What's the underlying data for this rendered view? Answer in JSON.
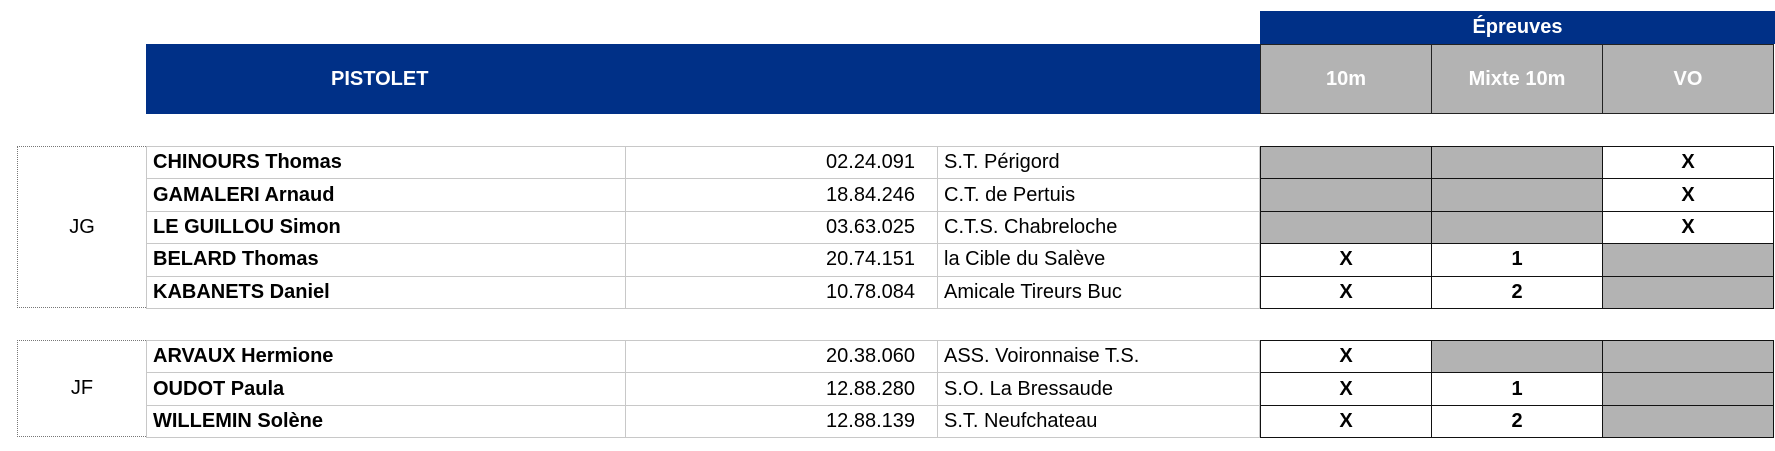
{
  "header": {
    "title": "PISTOLET",
    "events_label": "Épreuves",
    "events": [
      "10m",
      "Mixte 10m",
      "VO"
    ]
  },
  "groups": [
    {
      "label": "JG",
      "rows": [
        {
          "name": "CHINOURS Thomas",
          "license": "02.24.091",
          "club": "S.T. Périgord",
          "events": [
            null,
            null,
            "X"
          ]
        },
        {
          "name": "GAMALERI Arnaud",
          "license": "18.84.246",
          "club": "C.T. de Pertuis",
          "events": [
            null,
            null,
            "X"
          ]
        },
        {
          "name": "LE GUILLOU Simon",
          "license": "03.63.025",
          "club": "C.T.S. Chabreloche",
          "events": [
            null,
            null,
            "X"
          ]
        },
        {
          "name": "BELARD Thomas",
          "license": "20.74.151",
          "club": "la Cible du Salève",
          "events": [
            "X",
            "1",
            null
          ]
        },
        {
          "name": "KABANETS Daniel",
          "license": "10.78.084",
          "club": "Amicale Tireurs Buc",
          "events": [
            "X",
            "2",
            null
          ]
        }
      ]
    },
    {
      "label": "JF",
      "rows": [
        {
          "name": "ARVAUX Hermione",
          "license": "20.38.060",
          "club": "ASS. Voironnaise T.S.",
          "events": [
            "X",
            null,
            null
          ]
        },
        {
          "name": "OUDOT Paula",
          "license": "12.88.280",
          "club": "S.O. La Bressaude",
          "events": [
            "X",
            "1",
            null
          ]
        },
        {
          "name": "WILLEMIN Solène",
          "license": "12.88.139",
          "club": "S.T. Neufchateau",
          "events": [
            "X",
            "2",
            null
          ]
        }
      ]
    }
  ]
}
